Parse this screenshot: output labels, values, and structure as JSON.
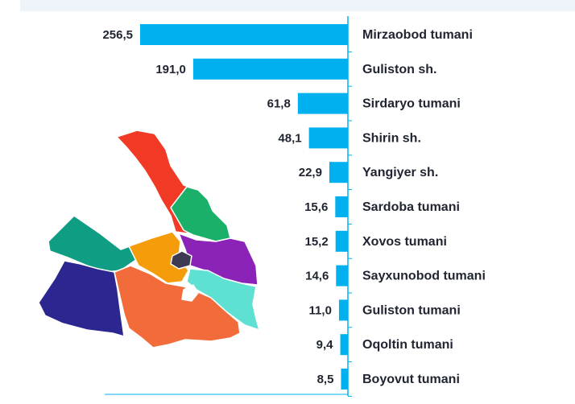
{
  "chart_data": {
    "type": "bar",
    "orientation": "horizontal",
    "direction": "bars extend leftward from axis",
    "categories": [
      "Mirzaobod tumani",
      "Guliston sh.",
      "Sirdaryo tumani",
      "Shirin sh.",
      "Yangiyer sh.",
      "Sardoba tumani",
      "Xovos tumani",
      "Sayxunobod tumani",
      "Guliston tumani",
      "Oqoltin tumani",
      "Boyovut tumani"
    ],
    "values": [
      256.5,
      191.0,
      61.8,
      48.1,
      22.9,
      15.6,
      15.2,
      14.6,
      11.0,
      9.4,
      8.5
    ],
    "value_labels": [
      "256,5",
      "191,0",
      "61,8",
      "48,1",
      "22,9",
      "15,6",
      "15,2",
      "14,6",
      "11,0",
      "9,4",
      "8,5"
    ],
    "bar_color": "#00b0ef",
    "title": "",
    "xlabel": "",
    "ylabel": ""
  },
  "map": {
    "region_colors": [
      "#f03a26",
      "#1ab06a",
      "#0f9e84",
      "#f59c0a",
      "#8c23b8",
      "#2b2690",
      "#f26b3a",
      "#5ee0d2",
      "#3d3a52"
    ]
  }
}
